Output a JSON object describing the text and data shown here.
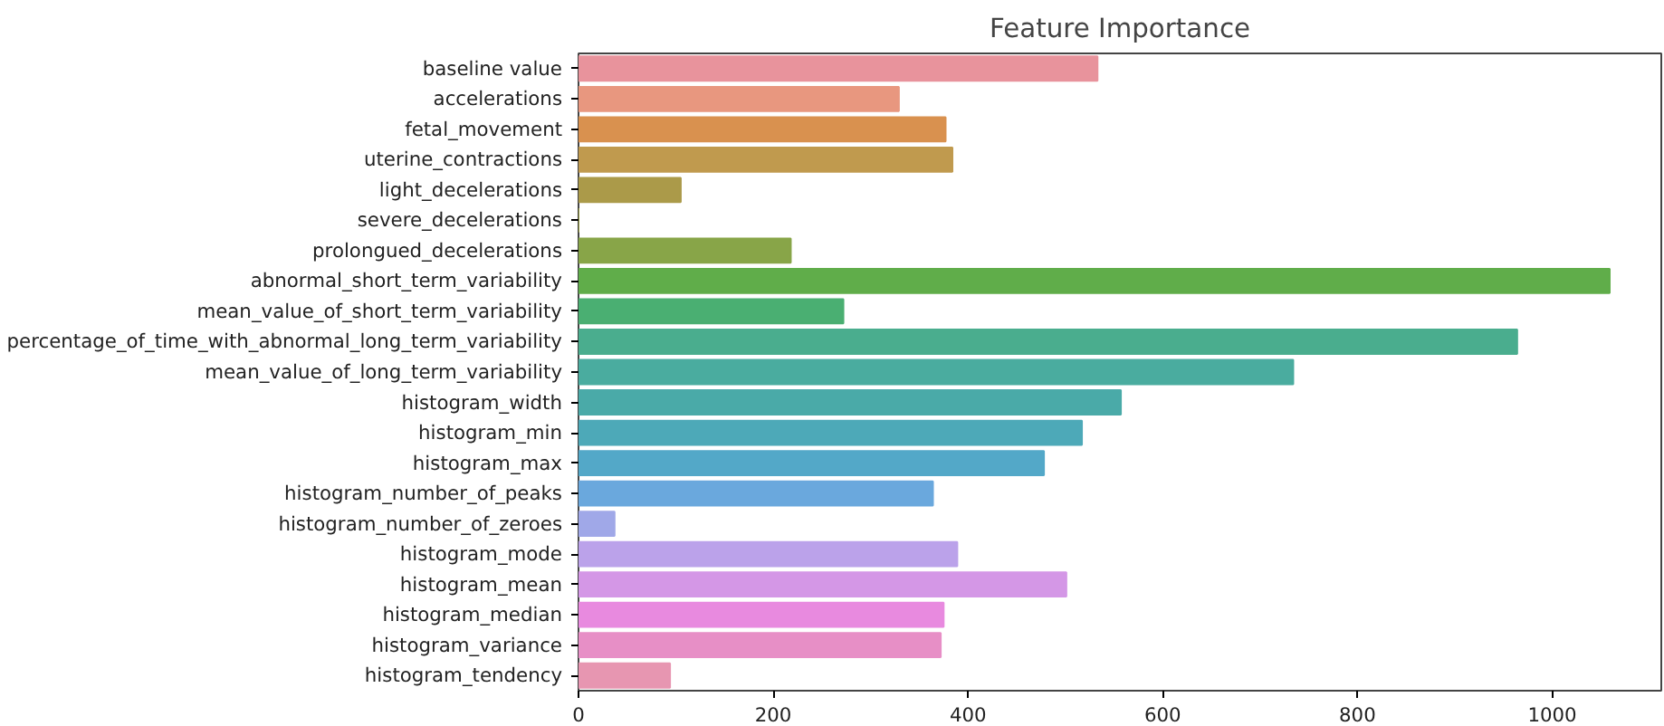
{
  "chart_data": {
    "type": "bar",
    "orientation": "horizontal",
    "title": "Feature Importance",
    "categories": [
      "baseline value",
      "accelerations",
      "fetal_movement",
      "uterine_contractions",
      "light_decelerations",
      "severe_decelerations",
      "prolongued_decelerations",
      "abnormal_short_term_variability",
      "mean_value_of_short_term_variability",
      "percentage_of_time_with_abnormal_long_term_variability",
      "mean_value_of_long_term_variability",
      "histogram_width",
      "histogram_min",
      "histogram_max",
      "histogram_number_of_peaks",
      "histogram_number_of_zeroes",
      "histogram_mode",
      "histogram_mean",
      "histogram_median",
      "histogram_variance",
      "histogram_tendency"
    ],
    "values": [
      533,
      329,
      377,
      384,
      105,
      0,
      218,
      1059,
      272,
      964,
      734,
      557,
      517,
      478,
      364,
      37,
      389,
      501,
      375,
      372,
      94
    ],
    "colors": [
      "#e8939c",
      "#e8977f",
      "#d9914f",
      "#c09a4e",
      "#ab9a49",
      "#9ca046",
      "#88a548",
      "#60ad4a",
      "#4aaf72",
      "#4aad8e",
      "#4aac9f",
      "#4aaaa8",
      "#4da9b8",
      "#53a8c8",
      "#6aa8dd",
      "#a0a8e8",
      "#bba2ea",
      "#d497e6",
      "#e88adf",
      "#e78fc6",
      "#e796b1"
    ],
    "xlim": [
      0,
      1112
    ],
    "xticks": [
      0,
      200,
      400,
      600,
      800,
      1000
    ],
    "grid": false
  }
}
